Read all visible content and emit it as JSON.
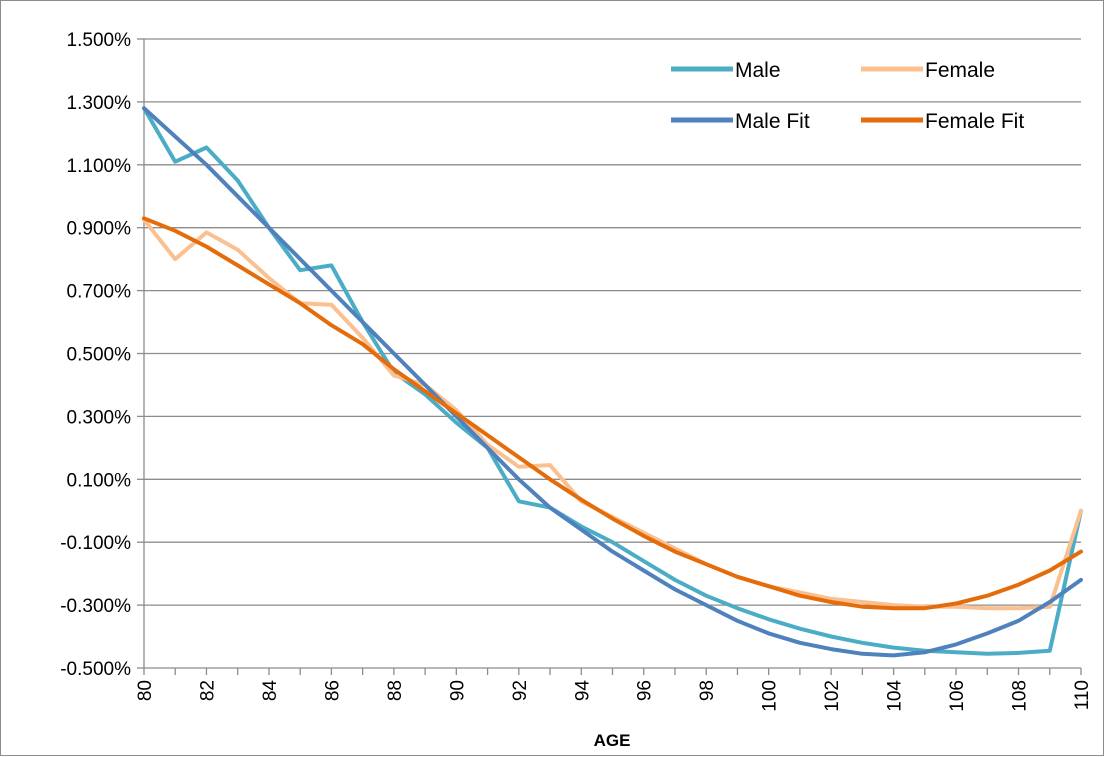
{
  "chart_data": {
    "type": "line",
    "title": "",
    "xlabel": "AGE",
    "ylabel": "",
    "xlim": [
      80,
      110
    ],
    "ylim": [
      -0.5,
      1.5
    ],
    "y_tick_step": 0.2,
    "y_tick_labels": [
      "-0.500%",
      "-0.300%",
      "-0.100%",
      "0.100%",
      "0.300%",
      "0.500%",
      "0.700%",
      "0.900%",
      "1.100%",
      "1.300%",
      "1.500%"
    ],
    "x_tick_labels": [
      "80",
      "82",
      "84",
      "86",
      "88",
      "90",
      "92",
      "94",
      "96",
      "98",
      "100",
      "102",
      "104",
      "106",
      "108",
      "110"
    ],
    "x": [
      80,
      81,
      82,
      83,
      84,
      85,
      86,
      87,
      88,
      89,
      90,
      91,
      92,
      93,
      94,
      95,
      96,
      97,
      98,
      99,
      100,
      101,
      102,
      103,
      104,
      105,
      106,
      107,
      108,
      109,
      110
    ],
    "grid": true,
    "legend_position": "top-right",
    "series": [
      {
        "name": "Male",
        "color": "#4bacc6",
        "width": 4,
        "values": [
          1.28,
          1.11,
          1.155,
          1.05,
          0.9,
          0.765,
          0.78,
          0.6,
          0.44,
          0.37,
          0.28,
          0.2,
          0.03,
          0.01,
          -0.05,
          -0.1,
          -0.16,
          -0.22,
          -0.27,
          -0.31,
          -0.345,
          -0.375,
          -0.4,
          -0.42,
          -0.435,
          -0.445,
          -0.45,
          -0.455,
          -0.452,
          -0.445,
          0.0
        ]
      },
      {
        "name": "Female",
        "color": "#fac090",
        "width": 4,
        "values": [
          0.925,
          0.8,
          0.885,
          0.83,
          0.74,
          0.66,
          0.655,
          0.55,
          0.43,
          0.4,
          0.32,
          0.21,
          0.14,
          0.145,
          0.03,
          -0.02,
          -0.07,
          -0.12,
          -0.17,
          -0.21,
          -0.24,
          -0.26,
          -0.28,
          -0.29,
          -0.3,
          -0.305,
          -0.305,
          -0.31,
          -0.31,
          -0.305,
          0.0
        ]
      },
      {
        "name": "Male Fit",
        "color": "#4f81bd",
        "width": 4,
        "values": [
          1.28,
          1.19,
          1.1,
          1.0,
          0.9,
          0.8,
          0.7,
          0.6,
          0.5,
          0.4,
          0.3,
          0.2,
          0.1,
          0.01,
          -0.06,
          -0.13,
          -0.19,
          -0.25,
          -0.3,
          -0.35,
          -0.39,
          -0.42,
          -0.44,
          -0.455,
          -0.46,
          -0.45,
          -0.425,
          -0.39,
          -0.35,
          -0.29,
          -0.22
        ]
      },
      {
        "name": "Female Fit",
        "color": "#e46c0a",
        "width": 4,
        "values": [
          0.93,
          0.89,
          0.84,
          0.78,
          0.72,
          0.66,
          0.59,
          0.53,
          0.45,
          0.38,
          0.31,
          0.24,
          0.17,
          0.1,
          0.035,
          -0.025,
          -0.08,
          -0.13,
          -0.17,
          -0.21,
          -0.24,
          -0.27,
          -0.29,
          -0.305,
          -0.31,
          -0.31,
          -0.295,
          -0.27,
          -0.235,
          -0.19,
          -0.13
        ]
      }
    ]
  }
}
